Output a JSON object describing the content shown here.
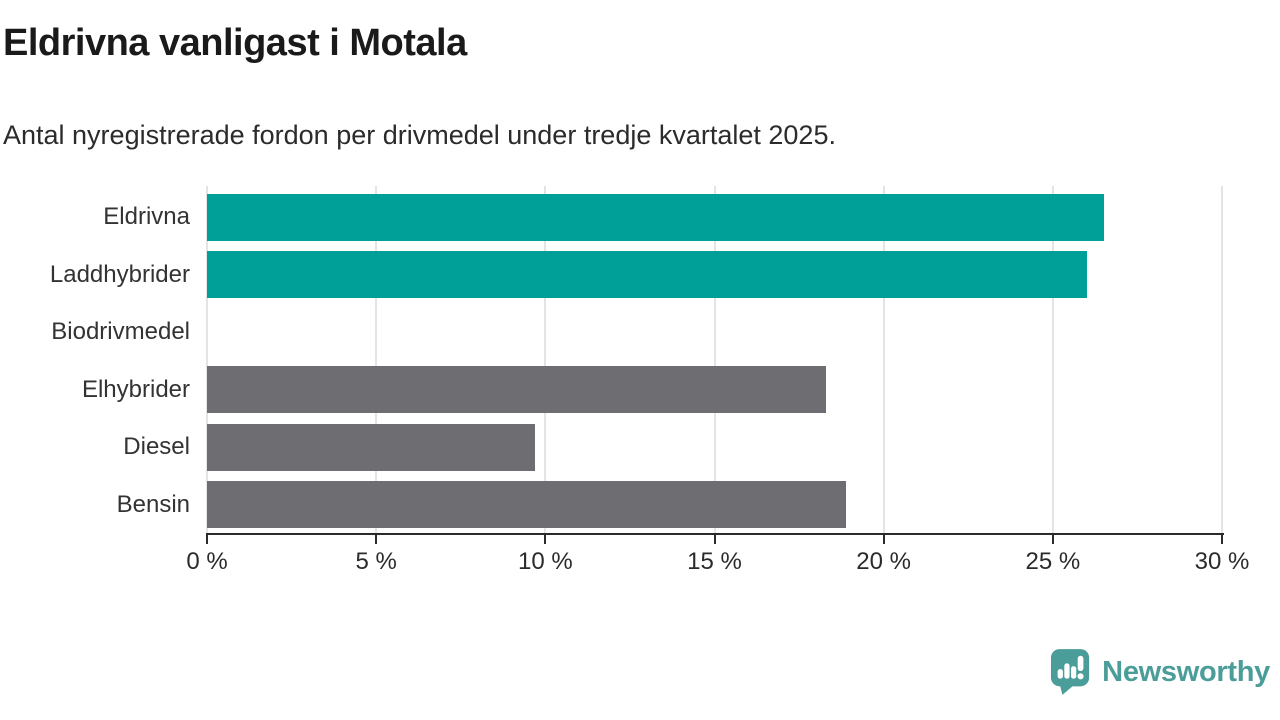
{
  "title": "Eldrivna vanligast i Motala",
  "subtitle": "Antal nyregistrerade fordon per drivmedel under tredje kvartalet 2025.",
  "branding": {
    "name": "Newsworthy",
    "icon": "newsworthy-speech-bubble-bar-chart-icon",
    "color": "#4a9d98"
  },
  "colors": {
    "highlight_bar": "#00a099",
    "default_bar": "#6e6e72",
    "gridline": "#e4e4e4",
    "axis": "#2b2b2b",
    "label_text": "#333333",
    "title_text": "#1a1a1a"
  },
  "chart_data": {
    "type": "bar",
    "orientation": "horizontal",
    "title": "Eldrivna vanligast i Motala",
    "subtitle": "Antal nyregistrerade fordon per drivmedel under tredje kvartalet 2025.",
    "xlabel": "",
    "ylabel": "",
    "unit": "%",
    "xlim": [
      0,
      30
    ],
    "grid": true,
    "categories": [
      "Eldrivna",
      "Laddhybrider",
      "Biodrivmedel",
      "Elhybrider",
      "Diesel",
      "Bensin"
    ],
    "values": [
      26.5,
      26.0,
      0,
      18.3,
      9.7,
      18.9
    ],
    "bar_colors": [
      "#00a099",
      "#00a099",
      "#6e6e72",
      "#6e6e72",
      "#6e6e72",
      "#6e6e72"
    ],
    "x_tick_values": [
      0,
      5,
      10,
      15,
      20,
      25,
      30
    ],
    "x_tick_labels": [
      "0 %",
      "5 %",
      "10 %",
      "15 %",
      "20 %",
      "25 %",
      "30 %"
    ]
  }
}
